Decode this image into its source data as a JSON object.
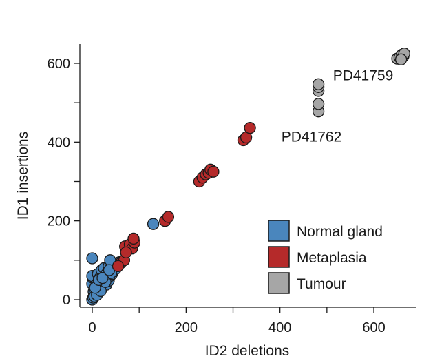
{
  "chart_data": {
    "type": "scatter",
    "title": "",
    "xlabel": "ID2 deletions",
    "ylabel": "ID1 insertions",
    "xlim": [
      -20,
      670
    ],
    "ylim": [
      -20,
      650
    ],
    "xticks": [
      0,
      200,
      400,
      600
    ],
    "xminor": [
      100,
      300,
      500
    ],
    "yticks": [
      0,
      200,
      400,
      600
    ],
    "yminor": [
      100,
      300,
      500
    ],
    "grid": false,
    "legend_position": "bottom-right",
    "series": [
      {
        "name": "Normal gland",
        "color": "#4A86BD",
        "points": [
          [
            0,
            0
          ],
          [
            2,
            5
          ],
          [
            4,
            10
          ],
          [
            6,
            14
          ],
          [
            3,
            20
          ],
          [
            8,
            18
          ],
          [
            10,
            25
          ],
          [
            12,
            30
          ],
          [
            5,
            35
          ],
          [
            0,
            40
          ],
          [
            15,
            20
          ],
          [
            18,
            35
          ],
          [
            20,
            28
          ],
          [
            22,
            45
          ],
          [
            25,
            40
          ],
          [
            28,
            50
          ],
          [
            30,
            38
          ],
          [
            8,
            48
          ],
          [
            2,
            55
          ],
          [
            0,
            60
          ],
          [
            12,
            65
          ],
          [
            5,
            15
          ],
          [
            10,
            40
          ],
          [
            16,
            55
          ],
          [
            24,
            62
          ],
          [
            32,
            55
          ],
          [
            35,
            48
          ],
          [
            38,
            60
          ],
          [
            40,
            70
          ],
          [
            42,
            65
          ],
          [
            45,
            72
          ],
          [
            48,
            80
          ],
          [
            50,
            78
          ],
          [
            52,
            85
          ],
          [
            55,
            90
          ],
          [
            58,
            95
          ],
          [
            60,
            92
          ],
          [
            20,
            75
          ],
          [
            25,
            80
          ],
          [
            15,
            45
          ],
          [
            30,
            65
          ],
          [
            35,
            85
          ],
          [
            38,
            100
          ],
          [
            40,
            68
          ],
          [
            0,
            105
          ],
          [
            130,
            192
          ],
          [
            5,
            8
          ],
          [
            10,
            12
          ],
          [
            18,
            22
          ],
          [
            28,
            45
          ],
          [
            6,
            30
          ],
          [
            14,
            50
          ],
          [
            22,
            55
          ],
          [
            36,
            75
          ]
        ]
      },
      {
        "name": "Metaplasia",
        "color": "#B52A2A",
        "points": [
          [
            75,
            125
          ],
          [
            70,
            135
          ],
          [
            80,
            140
          ],
          [
            85,
            130
          ],
          [
            90,
            145
          ],
          [
            88,
            155
          ],
          [
            62,
            95
          ],
          [
            68,
            100
          ],
          [
            55,
            85
          ],
          [
            72,
            120
          ],
          [
            155,
            200
          ],
          [
            162,
            210
          ],
          [
            228,
            300
          ],
          [
            235,
            310
          ],
          [
            242,
            318
          ],
          [
            248,
            322
          ],
          [
            252,
            330
          ],
          [
            258,
            325
          ],
          [
            322,
            405
          ],
          [
            328,
            412
          ],
          [
            336,
            436
          ]
        ]
      },
      {
        "name": "Tumour",
        "color": "#A6A6A6",
        "points": [
          [
            482,
            478
          ],
          [
            482,
            497
          ],
          [
            482,
            530
          ],
          [
            482,
            540
          ],
          [
            482,
            547
          ],
          [
            650,
            612
          ],
          [
            655,
            615
          ],
          [
            660,
            622
          ],
          [
            663,
            618
          ],
          [
            665,
            625
          ],
          [
            658,
            610
          ]
        ]
      }
    ],
    "annotations": [
      {
        "text": "PD41759",
        "x": 513,
        "y": 557
      },
      {
        "text": "PD41762",
        "x": 403,
        "y": 401
      }
    ]
  },
  "legend": {
    "items": [
      {
        "label": "Normal gland",
        "color": "#4A86BD"
      },
      {
        "label": "Metaplasia",
        "color": "#B52A2A"
      },
      {
        "label": "Tumour",
        "color": "#A6A6A6"
      }
    ]
  }
}
